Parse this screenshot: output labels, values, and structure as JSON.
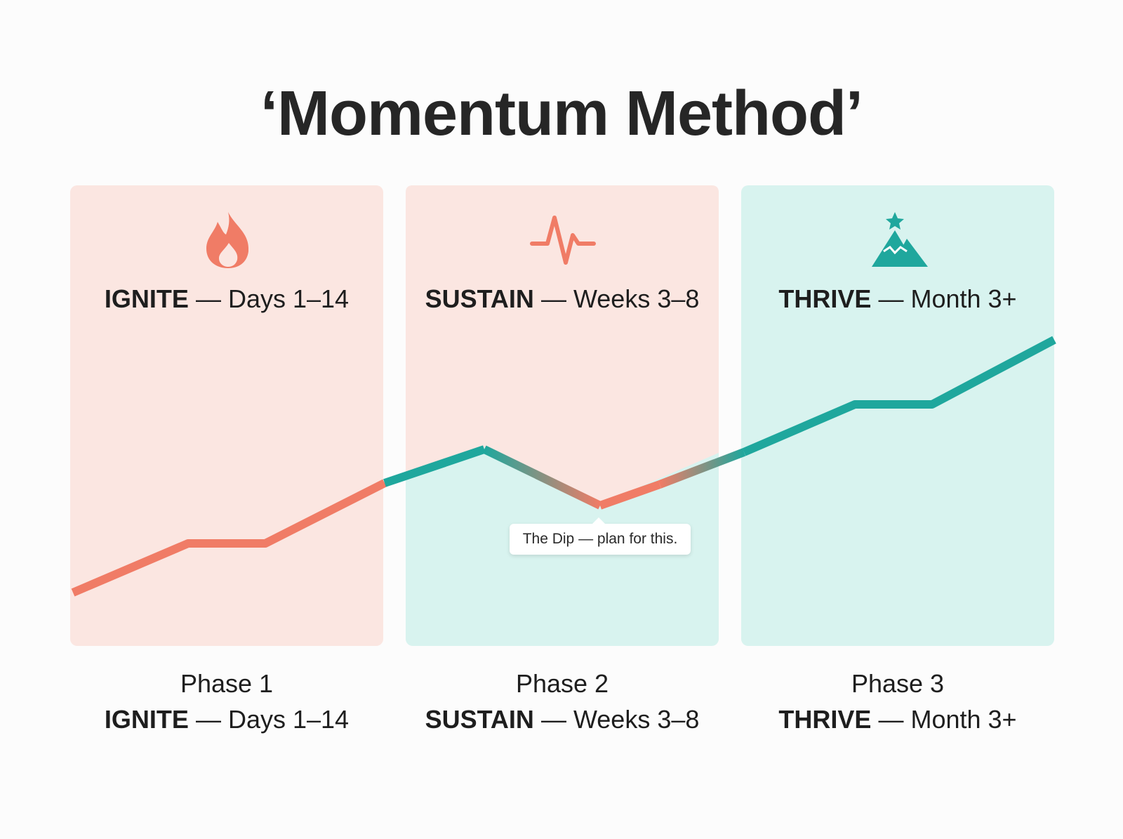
{
  "title": "‘Momentum Method’",
  "colors": {
    "coral": "#f07c66",
    "teal": "#1fa79d",
    "panel_coral_bg": "#fbe6e1",
    "panel_teal_bg": "#d8f3ef"
  },
  "panels": [
    {
      "icon": "flame-icon",
      "name": "IGNITE",
      "dash": " — ",
      "span": "Days 1–14",
      "phase": "Phase 1"
    },
    {
      "icon": "heartbeat-icon",
      "name": "SUSTAIN",
      "dash": " — ",
      "span": "Weeks 3–8",
      "phase": "Phase 2"
    },
    {
      "icon": "mountain-star-icon",
      "name": "THRIVE",
      "dash": " — ",
      "span": "Month 3+",
      "phase": "Phase 3"
    }
  ],
  "callout": {
    "text": "The Dip — plan for this."
  }
}
